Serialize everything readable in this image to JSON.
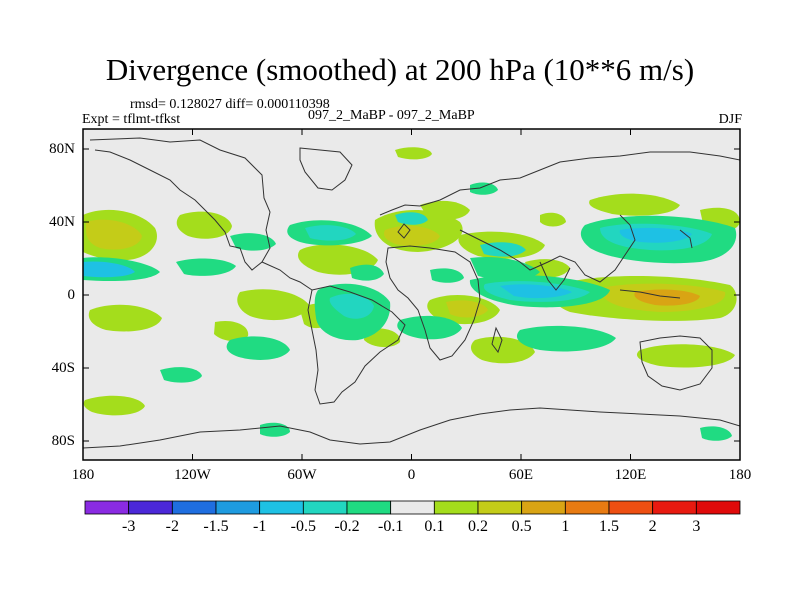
{
  "title": "Divergence (smoothed) at 200 hPa (10**6 m/s)",
  "subtitle_stats": "rmsd= 0.128027 diff= 0.000110398",
  "subtitle_expt": "Expt = tflmt-tfkst",
  "subtitle_case": "097_2_MaBP - 097_2_MaBP",
  "subtitle_season": "DJF",
  "lat_labels": [
    "80N",
    "40N",
    "0",
    "40S",
    "80S"
  ],
  "lon_labels": [
    "180",
    "120W",
    "60W",
    "0",
    "60E",
    "120E",
    "180"
  ],
  "colorbar": {
    "labels": [
      "-3",
      "-2",
      "-1.5",
      "-1",
      "-0.5",
      "-0.2",
      "-0.1",
      "0.1",
      "0.2",
      "0.5",
      "1",
      "1.5",
      "2",
      "3"
    ],
    "colors": [
      "#8a2be2",
      "#4b28d8",
      "#1f6ee0",
      "#1e9be0",
      "#1ec1e4",
      "#22d6c0",
      "#20db82",
      "#eaeaea",
      "#a4dd1c",
      "#c4cc18",
      "#d9a414",
      "#e87b12",
      "#ee4f12",
      "#e81a10",
      "#e00a0a"
    ]
  },
  "field_colors": {
    "background": "#eaeaea",
    "cyan": "#1ec1e4",
    "teal": "#22d6c0",
    "green": "#20db82",
    "lime": "#a4dd1c",
    "olive": "#c4cc18",
    "orange": "#d9a414"
  }
}
